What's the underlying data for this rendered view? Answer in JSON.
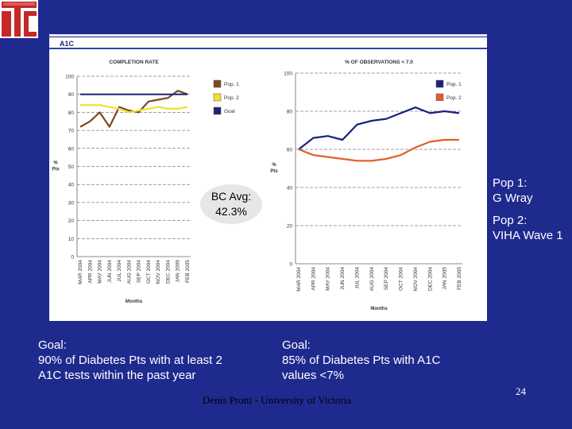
{
  "figure_title": "A1C",
  "colors": {
    "background": "#1f2a8e",
    "pop1_left": "#7b4a23",
    "pop2_left": "#f4df2b",
    "goal": "#1c2474",
    "pop1_right": "#19217d",
    "pop2_right": "#e0602a"
  },
  "chart_data": [
    {
      "type": "line",
      "title": "COMPLETION RATE",
      "ylabel": "% Pts",
      "xlabel": "Months",
      "ylim": [
        0,
        100
      ],
      "y_ticks": [
        0,
        10,
        20,
        30,
        40,
        50,
        60,
        70,
        80,
        90,
        100
      ],
      "categories": [
        "MAR 2004",
        "APR 2004",
        "MAY 2004",
        "JUN 2004",
        "JUL 2004",
        "AUG 2004",
        "SEP 2004",
        "OCT 2004",
        "NOV 2004",
        "DEC 2004",
        "JAN 2005",
        "FEB 2005"
      ],
      "series": [
        {
          "name": "Pop. 1",
          "values": [
            72,
            75,
            80,
            72,
            83,
            81,
            80,
            86,
            87,
            88,
            92,
            90
          ]
        },
        {
          "name": "Pop. 2",
          "values": [
            84,
            84,
            84,
            83,
            82,
            80,
            81,
            82,
            83,
            82,
            82,
            83
          ]
        },
        {
          "name": "Goal",
          "values": [
            90,
            90,
            90,
            90,
            90,
            90,
            90,
            90,
            90,
            90,
            90,
            90
          ]
        }
      ],
      "legend": [
        "Pop. 1",
        "Pop. 2",
        "Goal"
      ],
      "grid": true
    },
    {
      "type": "line",
      "title": "% OF OBSERVATIONS < 7.0",
      "ylabel": "% Pts",
      "xlabel": "Months",
      "ylim": [
        0,
        100
      ],
      "y_ticks": [
        0,
        20,
        40,
        60,
        80,
        100
      ],
      "categories": [
        "MAR 2004",
        "APR 2004",
        "MAY 2004",
        "JUN 2004",
        "JUL 2004",
        "AUG 2004",
        "SEP 2004",
        "OCT 2004",
        "NOV 2004",
        "DEC 2004",
        "JAN 2005",
        "FEB 2005"
      ],
      "series": [
        {
          "name": "Pop. 1",
          "values": [
            60,
            66,
            67,
            65,
            73,
            75,
            76,
            79,
            82,
            79,
            80,
            79
          ]
        },
        {
          "name": "Pop. 2",
          "values": [
            60,
            57,
            56,
            55,
            54,
            54,
            55,
            57,
            61,
            64,
            65,
            65
          ]
        }
      ],
      "legend": [
        "Pop. 1",
        "Pop. 2"
      ],
      "grid": true
    }
  ],
  "annotation": {
    "bc_avg_line1": "BC Avg:",
    "bc_avg_line2": "42.3%"
  },
  "goal_left": {
    "title": "Goal:",
    "line1": "90% of Diabetes Pts with at least 2",
    "line2": "A1C tests within the past year"
  },
  "goal_right": {
    "title": "Goal:",
    "line1": "85% of Diabetes Pts with A1C",
    "line2": "values <7%"
  },
  "pop_labels": {
    "pop1_line1": "Pop 1:",
    "pop1_line2": "G Wray",
    "pop2_line1": "Pop 2:",
    "pop2_line2": "VIHA Wave 1"
  },
  "footer": "Denis Protti - University of Victoria",
  "page_number": "24"
}
